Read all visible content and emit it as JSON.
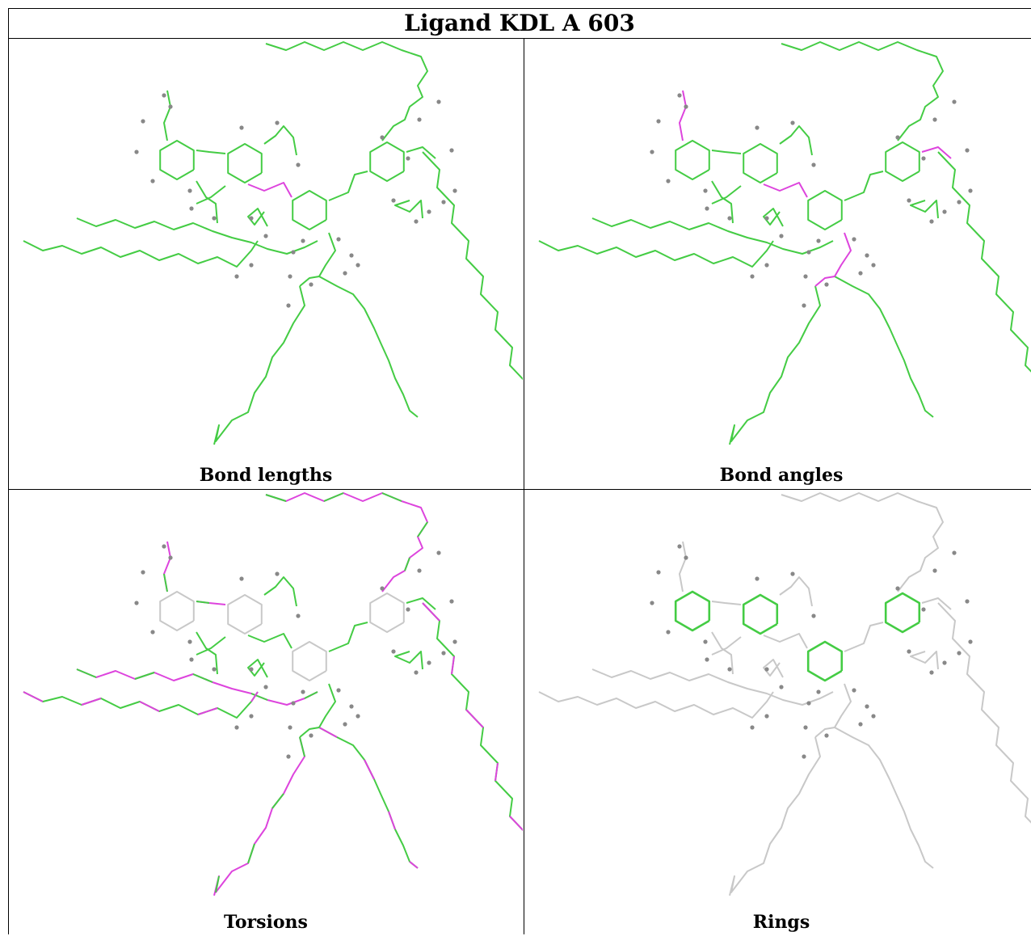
{
  "title": "Ligand KDL A 603",
  "colors": {
    "ok": "#44cc44",
    "outlier": "#dd44dd",
    "neutral": "#c8c8c8",
    "atom": "#888888"
  },
  "panels": [
    {
      "caption": "Bond lengths",
      "mode": "lengths"
    },
    {
      "caption": "Bond angles",
      "mode": "angles"
    },
    {
      "caption": "Torsions",
      "mode": "torsions"
    },
    {
      "caption": "Rings",
      "mode": "rings"
    }
  ]
}
